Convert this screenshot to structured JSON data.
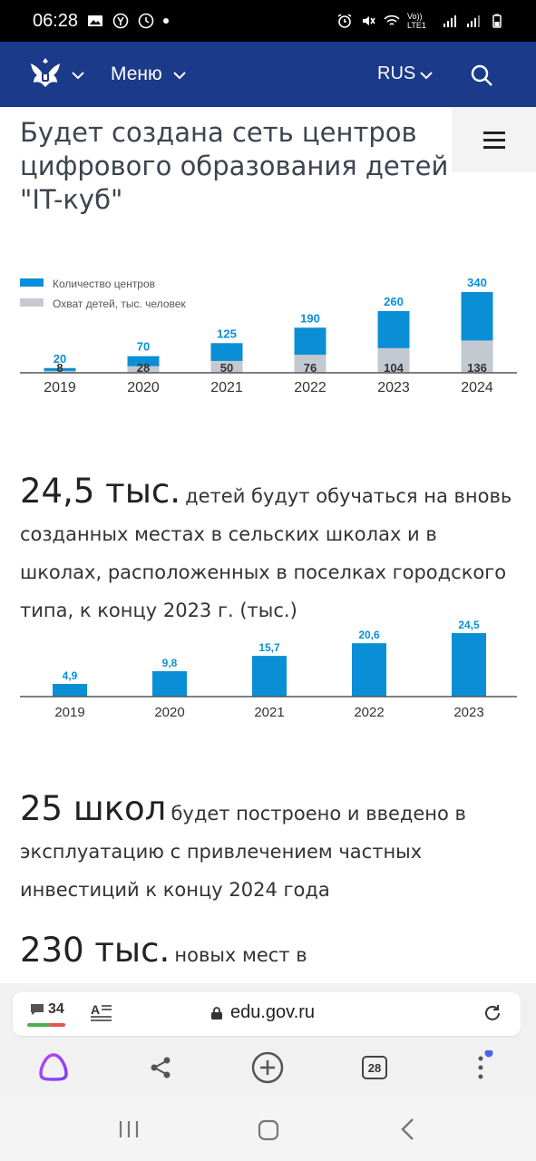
{
  "status_bar": {
    "time": "06:28",
    "network_label": "Vo)) LTE1"
  },
  "nav": {
    "menu_label": "Меню",
    "lang_label": "RUS"
  },
  "headline": "Будет создана сеть центров цифрового образования детей \"IT-куб\"",
  "chart_data": [
    {
      "type": "bar",
      "categories": [
        "2019",
        "2020",
        "2021",
        "2022",
        "2023",
        "2024"
      ],
      "series": [
        {
          "name": "Количество центров",
          "values": [
            20,
            70,
            125,
            190,
            260,
            340
          ],
          "color": "#0a8fd6"
        },
        {
          "name": "Охват детей, тыс. человек",
          "values": [
            8,
            28,
            50,
            76,
            104,
            136
          ],
          "color": "#c3c9d1"
        }
      ],
      "stacking": "overlay",
      "legend_position": "top-left",
      "ylim": [
        0,
        340
      ]
    },
    {
      "type": "bar",
      "categories": [
        "2019",
        "2020",
        "2021",
        "2022",
        "2023"
      ],
      "values": [
        4.9,
        9.8,
        15.7,
        20.6,
        24.5
      ],
      "labels": [
        "4,9",
        "9,8",
        "15,7",
        "20,6",
        "24,5"
      ],
      "color": "#0a8fd6",
      "ylim": [
        0,
        24.5
      ]
    }
  ],
  "stats": [
    {
      "big": "24,5 тыс.",
      "text": "детей будут обучаться на вновь созданных местах в сельских школах и в школах, расположенных в поселках городского типа, к концу 2023 г. (тыс.)"
    },
    {
      "big": "25 школ",
      "text": "будет построено и введено в эксплуатацию с привлечением частных инвестиций к концу 2024 года"
    },
    {
      "big": "230 тыс.",
      "text": "новых мест в"
    }
  ],
  "browser": {
    "comment_count": "34",
    "url": "edu.gov.ru",
    "tabs_count": "28"
  }
}
